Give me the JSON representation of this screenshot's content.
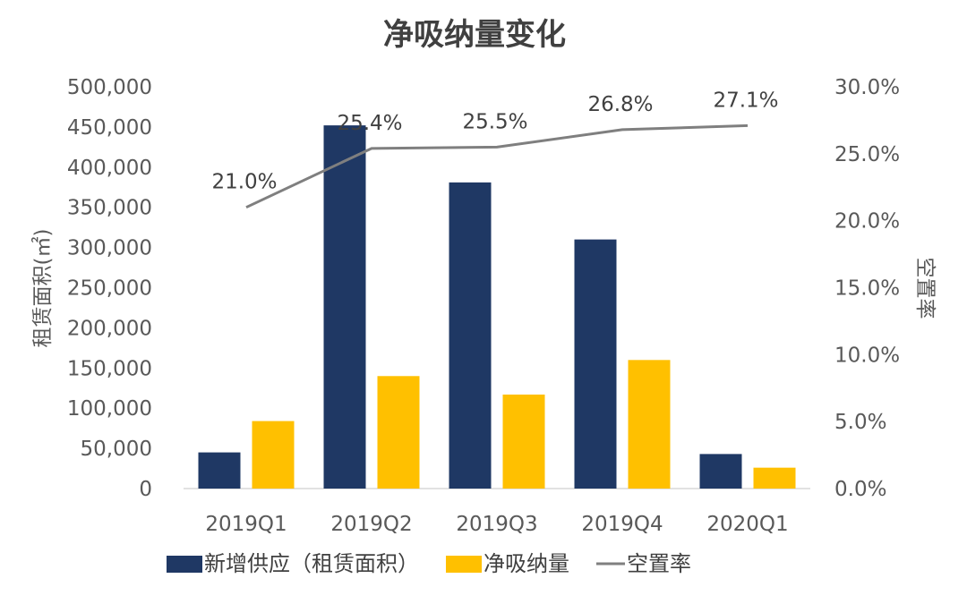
{
  "chart_data": {
    "type": "bar",
    "title": "净吸纳量变化",
    "categories": [
      "2019Q1",
      "2019Q2",
      "2019Q3",
      "2019Q4",
      "2020Q1"
    ],
    "series": [
      {
        "name": "新增供应（租赁面积）",
        "type": "bar",
        "axis": "left",
        "color": "#1f3864",
        "values": [
          45000,
          452000,
          381000,
          310000,
          43000
        ]
      },
      {
        "name": "净吸纳量",
        "type": "bar",
        "axis": "left",
        "color": "#ffc000",
        "values": [
          84000,
          140000,
          117000,
          160000,
          26000
        ]
      },
      {
        "name": "空置率",
        "type": "line",
        "axis": "right",
        "color": "#7f7f7f",
        "values": [
          21.0,
          25.4,
          25.5,
          26.8,
          27.1
        ],
        "labels": [
          "21.0%",
          "25.4%",
          "25.5%",
          "26.8%",
          "27.1%"
        ]
      }
    ],
    "y_left": {
      "label": "租赁面积(㎡)",
      "ylim": [
        0,
        500000
      ],
      "ticks": [
        0,
        50000,
        100000,
        150000,
        200000,
        250000,
        300000,
        350000,
        400000,
        450000,
        500000
      ],
      "tick_labels": [
        "0",
        "50,000",
        "100,000",
        "150,000",
        "200,000",
        "250,000",
        "300,000",
        "350,000",
        "400,000",
        "450,000",
        "500,000"
      ]
    },
    "y_right": {
      "label": "空置率",
      "ylim": [
        0,
        30
      ],
      "ticks": [
        0,
        5,
        10,
        15,
        20,
        25,
        30
      ],
      "tick_labels": [
        "0.0%",
        "5.0%",
        "10.0%",
        "15.0%",
        "20.0%",
        "25.0%",
        "30.0%"
      ]
    },
    "grid": false,
    "legend_position": "bottom"
  }
}
